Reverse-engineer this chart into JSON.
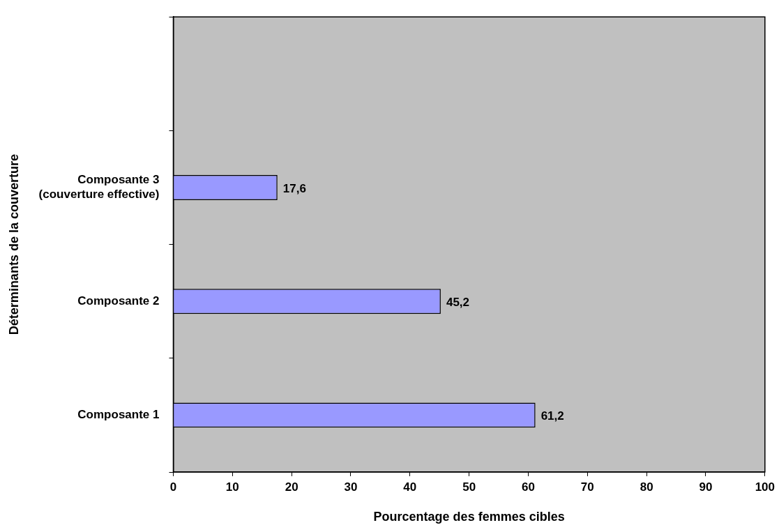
{
  "chart_data": {
    "type": "bar",
    "orientation": "horizontal",
    "xlabel": "Pourcentage des femmes cibles",
    "ylabel": "Déterminants de la couverture",
    "categories": [
      null,
      "Composante 3 (couverture effective)",
      "Composante 2",
      "Composante 1"
    ],
    "values": [
      null,
      17.6,
      45.2,
      61.2
    ],
    "value_labels": [
      null,
      "17,6",
      "45,2",
      "61,2"
    ],
    "color": "#9999ff",
    "xlim": [
      0,
      100
    ],
    "xticks": [
      0,
      10,
      20,
      30,
      40,
      50,
      60,
      70,
      80,
      90,
      100
    ],
    "grid": false,
    "legend": false
  }
}
